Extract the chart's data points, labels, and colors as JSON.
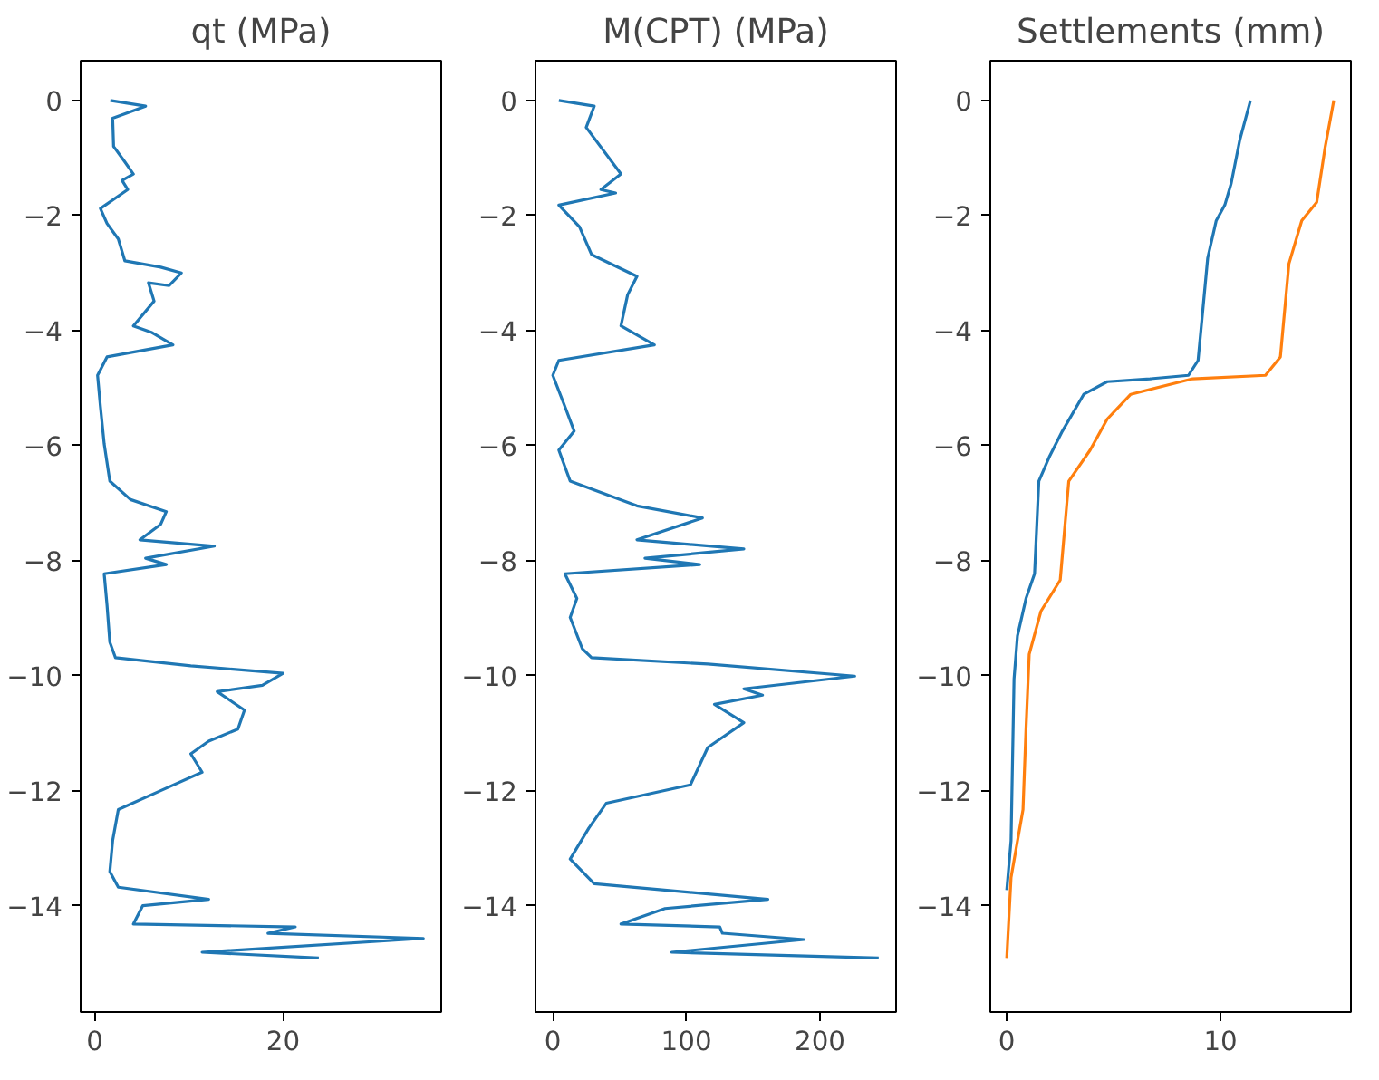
{
  "chart_data": [
    {
      "type": "line",
      "title": "qt (MPa)",
      "xlim": [
        -1.5,
        36.8
      ],
      "xticks": [
        0,
        20
      ],
      "ylim": [
        -15.85,
        0.69
      ],
      "yticks": [
        0,
        -2,
        -4,
        -6,
        -8,
        -10,
        -12,
        -14
      ],
      "series": [
        {
          "color": "#1f77b4",
          "x": [
            1.65,
            5.4,
            1.9,
            2.0,
            3.2,
            4.1,
            2.9,
            3.5,
            0.6,
            1.3,
            2.5,
            3.2,
            7.0,
            9.2,
            7.9,
            5.7,
            6.3,
            4.1,
            6.0,
            8.3,
            1.3,
            0.3,
            0.6,
            1.0,
            1.6,
            3.8,
            7.6,
            7.0,
            4.8,
            12.7,
            5.4,
            7.6,
            1.0,
            1.3,
            1.6,
            2.2,
            10.2,
            20.0,
            17.8,
            13.0,
            15.9,
            15.2,
            12.1,
            10.2,
            11.4,
            7.0,
            2.5,
            1.9,
            1.6,
            2.5,
            12.1,
            5.1,
            4.1,
            21.3,
            18.4,
            34.9,
            11.4,
            23.8
          ],
          "values": [
            0,
            -0.1,
            -0.31,
            -0.8,
            -1.07,
            -1.28,
            -1.39,
            -1.55,
            -1.88,
            -2.14,
            -2.41,
            -2.79,
            -2.9,
            -3.0,
            -3.22,
            -3.17,
            -3.49,
            -3.92,
            -4.03,
            -4.25,
            -4.46,
            -4.78,
            -5.32,
            -5.97,
            -6.62,
            -6.94,
            -7.15,
            -7.37,
            -7.64,
            -7.75,
            -7.96,
            -8.07,
            -8.23,
            -8.77,
            -9.42,
            -9.69,
            -9.83,
            -9.96,
            -10.17,
            -10.28,
            -10.6,
            -10.93,
            -11.14,
            -11.36,
            -11.68,
            -12.0,
            -12.33,
            -12.87,
            -13.41,
            -13.68,
            -13.89,
            -14.0,
            -14.32,
            -14.37,
            -14.48,
            -14.57,
            -14.81,
            -14.91
          ]
        }
      ]
    },
    {
      "type": "line",
      "title": "M(CPT) (MPa)",
      "xlim": [
        -13,
        257
      ],
      "xticks": [
        0,
        100,
        200
      ],
      "ylim": [
        -15.85,
        0.69
      ],
      "yticks": [
        0,
        -2,
        -4,
        -6,
        -8,
        -10,
        -12,
        -14
      ],
      "series": [
        {
          "color": "#1f77b4",
          "x": [
            4.5,
            31,
            25,
            51,
            36,
            47,
            4.5,
            20,
            29,
            63,
            56,
            51,
            76,
            4.5,
            0,
            9,
            16,
            4.5,
            13,
            63,
            112,
            63,
            143,
            69,
            110,
            9,
            18,
            13,
            22,
            29,
            116,
            226,
            143,
            157,
            121,
            143,
            116,
            103,
            40,
            27,
            13,
            31,
            161,
            84,
            51,
            125,
            127,
            188,
            89,
            244
          ],
          "values": [
            0,
            -0.1,
            -0.47,
            -1.28,
            -1.55,
            -1.61,
            -1.82,
            -2.2,
            -2.68,
            -3.06,
            -3.38,
            -3.92,
            -4.25,
            -4.52,
            -4.78,
            -5.32,
            -5.75,
            -6.08,
            -6.62,
            -7.05,
            -7.26,
            -7.64,
            -7.8,
            -7.96,
            -8.07,
            -8.23,
            -8.66,
            -8.99,
            -9.53,
            -9.69,
            -9.8,
            -10.01,
            -10.23,
            -10.34,
            -10.5,
            -10.82,
            -11.25,
            -11.9,
            -12.22,
            -12.65,
            -13.19,
            -13.62,
            -13.89,
            -14.05,
            -14.32,
            -14.37,
            -14.48,
            -14.59,
            -14.81,
            -14.91
          ]
        }
      ]
    },
    {
      "type": "line",
      "title": "Settlements (mm)",
      "xlim": [
        -0.77,
        16.1
      ],
      "xticks": [
        0,
        10
      ],
      "ylim": [
        -15.85,
        0.69
      ],
      "yticks": [
        0,
        -2,
        -4,
        -6,
        -8,
        -10,
        -12,
        -14
      ],
      "series": [
        {
          "color": "#1f77b4",
          "x": [
            11.4,
            10.9,
            10.5,
            10.2,
            9.8,
            9.4,
            8.95,
            8.5,
            6.7,
            4.7,
            3.6,
            2.6,
            2.0,
            1.5,
            1.3,
            0.9,
            0.5,
            0.34,
            0.2,
            0
          ],
          "values": [
            0,
            -0.69,
            -1.44,
            -1.82,
            -2.09,
            -2.74,
            -4.52,
            -4.78,
            -4.84,
            -4.89,
            -5.11,
            -5.75,
            -6.19,
            -6.62,
            -8.23,
            -8.66,
            -9.31,
            -10.06,
            -12.87,
            -13.73
          ]
        },
        {
          "color": "#ff7f0e",
          "x": [
            15.3,
            14.9,
            14.5,
            13.8,
            13.2,
            12.8,
            12.1,
            8.7,
            5.8,
            4.7,
            3.9,
            2.9,
            2.5,
            1.6,
            1.05,
            0.9,
            0.76,
            0.2,
            0
          ],
          "values": [
            0,
            -0.8,
            -1.77,
            -2.09,
            -2.84,
            -4.46,
            -4.78,
            -4.84,
            -5.11,
            -5.54,
            -6.08,
            -6.62,
            -8.34,
            -8.88,
            -9.63,
            -10.93,
            -12.33,
            -13.51,
            -14.91
          ]
        }
      ]
    }
  ]
}
